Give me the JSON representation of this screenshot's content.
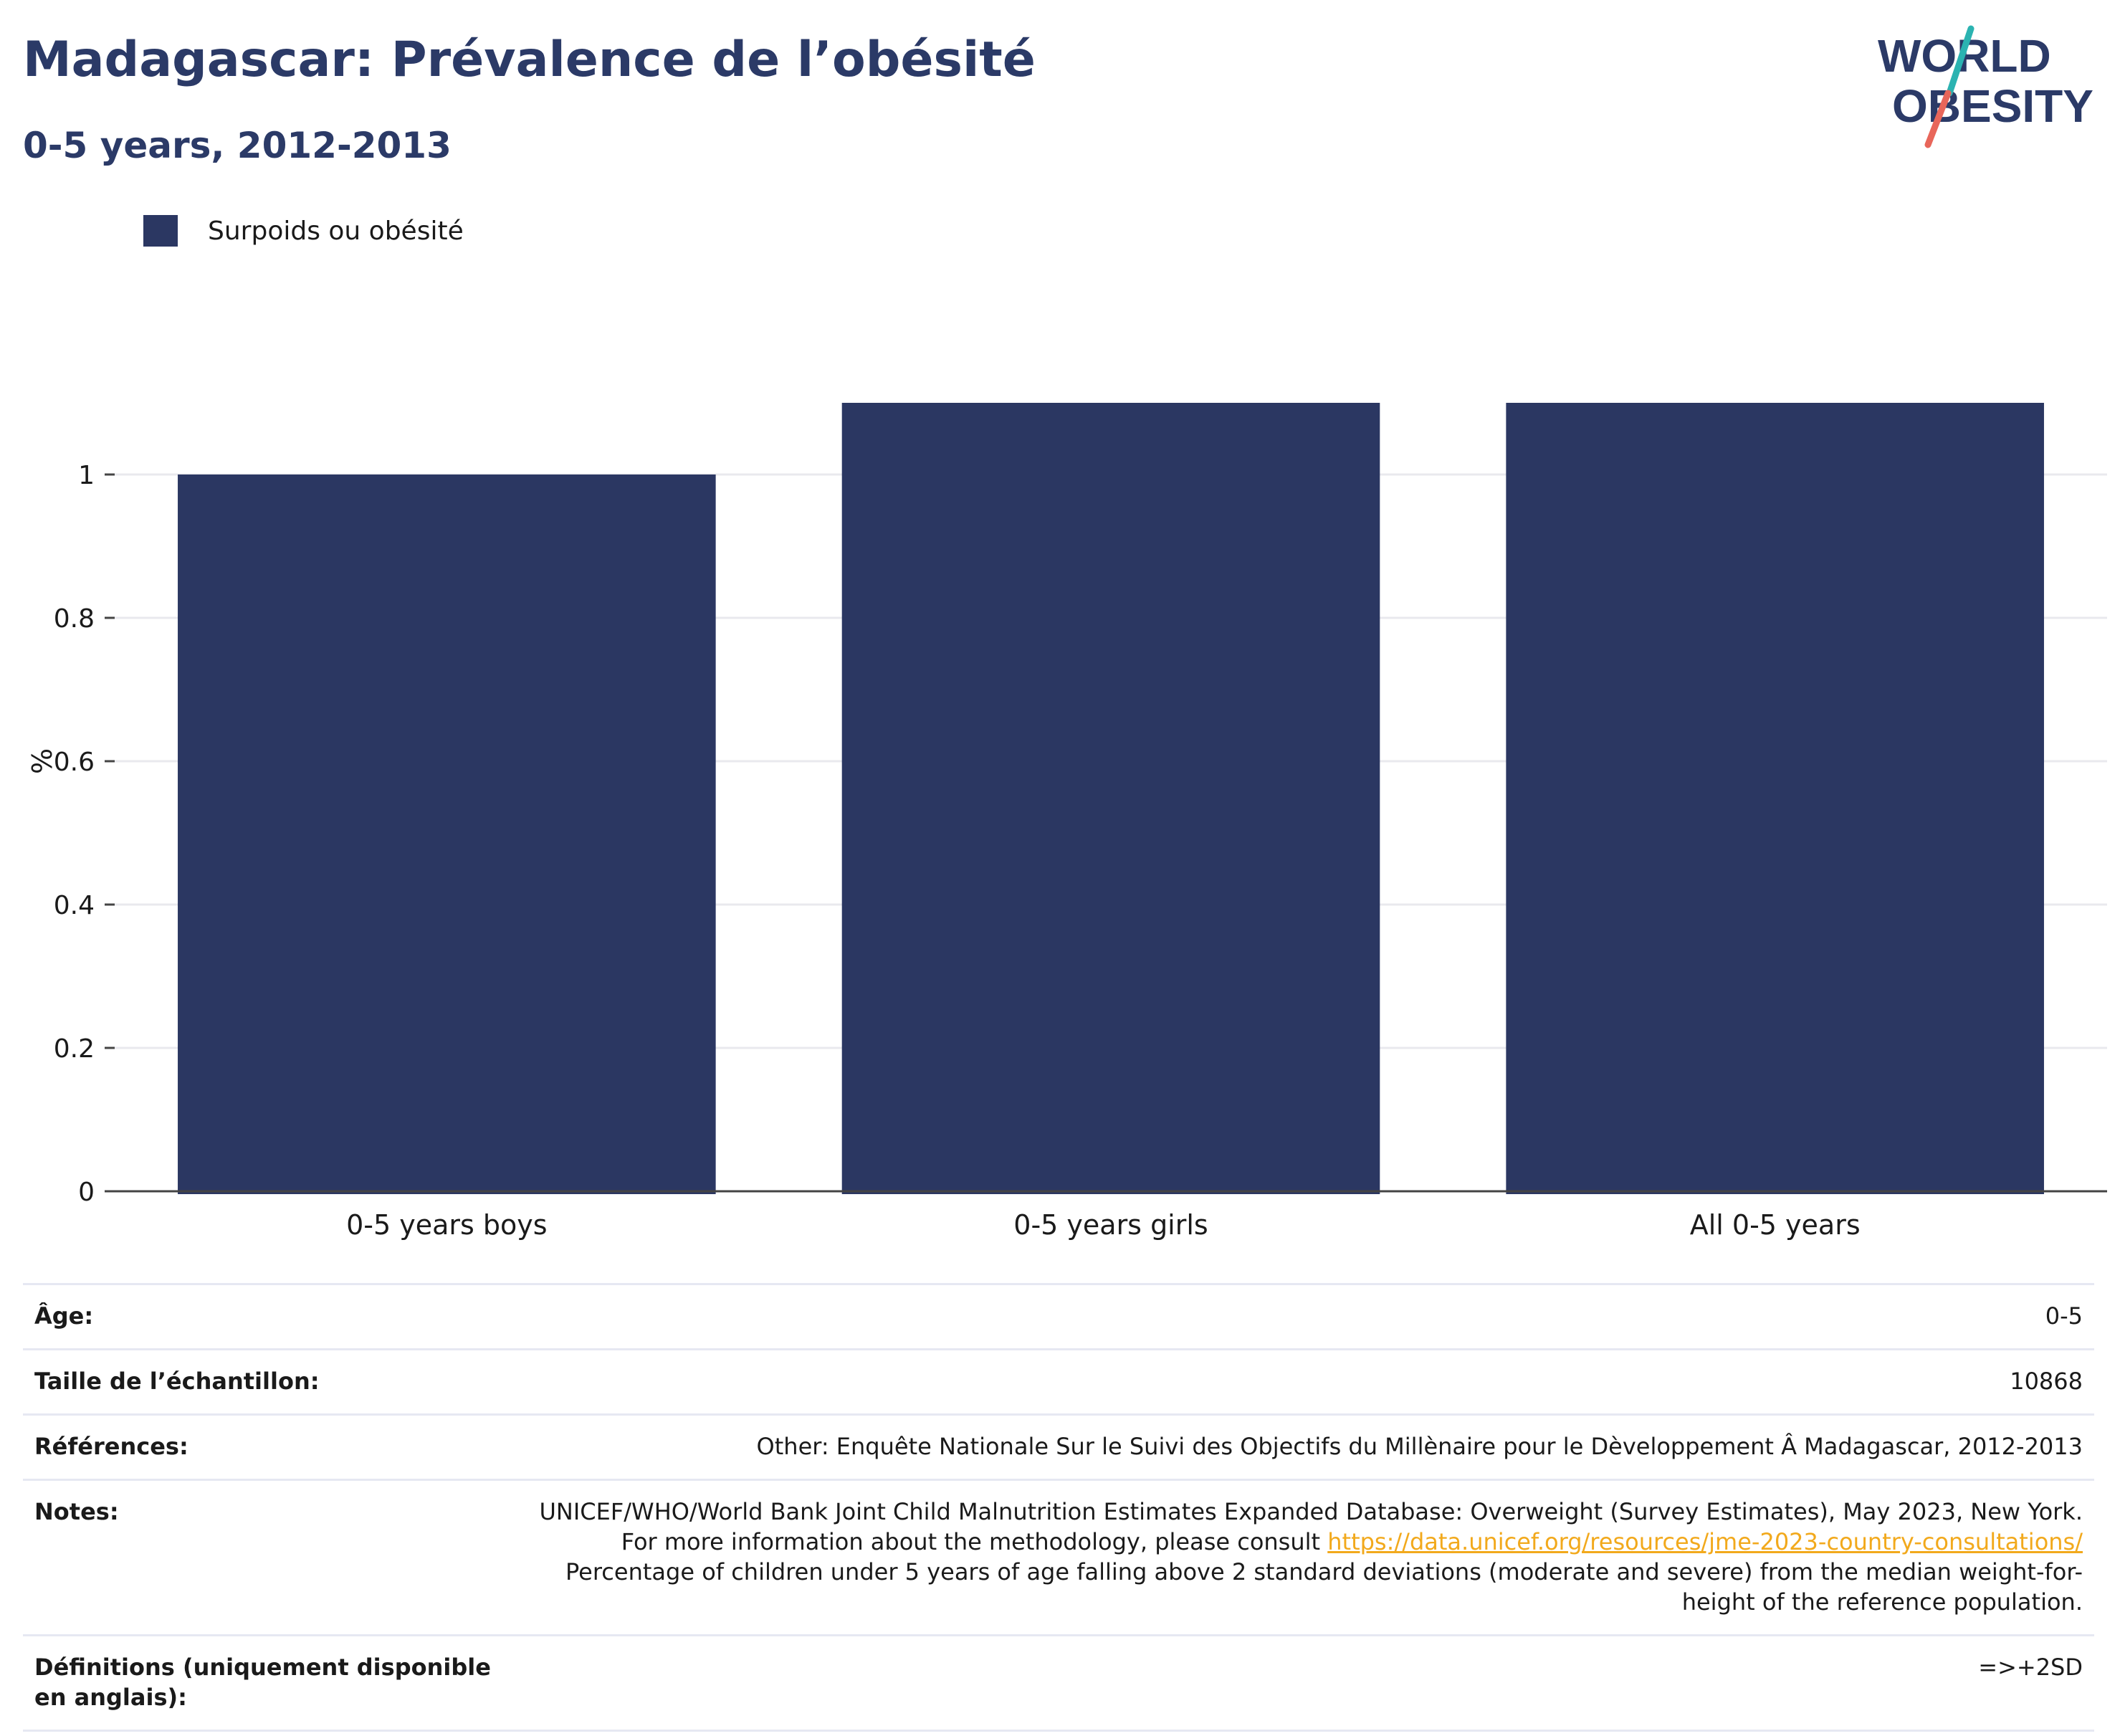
{
  "header": {
    "title": "Madagascar: Prévalence de l’obésité",
    "subtitle": "0-5 years, 2012-2013"
  },
  "logo": {
    "line1": "WORLD",
    "line2": "OBESITY",
    "colors": {
      "text": "#2b3a67",
      "slash_top": "#2bb3b1",
      "slash_bottom": "#e8665a"
    }
  },
  "legend": {
    "label": "Surpoids ou obésité",
    "color": "#2b3762"
  },
  "chart_data": {
    "type": "bar",
    "categories": [
      "0-5 years boys",
      "0-5 years girls",
      "All 0-5 years"
    ],
    "series": [
      {
        "name": "Surpoids ou obésité",
        "values": [
          1.0,
          1.1,
          1.1
        ],
        "color": "#2b3762"
      }
    ],
    "ylabel": "%",
    "ylim": [
      0,
      1.1
    ],
    "yticks": [
      0,
      0.2,
      0.4,
      0.6,
      0.8,
      1
    ],
    "yticklabels": [
      "0",
      "0.2",
      "0.4",
      "0.6",
      "0.8",
      "1"
    ],
    "grid": true
  },
  "meta": {
    "age_label": "Âge:",
    "age_value": "0-5",
    "sample_label": "Taille de l’échantillon:",
    "sample_value": "10868",
    "refs_label": "Références:",
    "refs_value": "Other: Enquête Nationale Sur le Suivi des Objectifs du Millènaire pour le Dèveloppement Â Madagascar, 2012-2013",
    "notes_label": "Notes:",
    "notes_text1": "UNICEF/WHO/World Bank Joint Child Malnutrition Estimates Expanded Database: Overweight (Survey Estimates), May 2023, New York. For more information about the methodology, please consult ",
    "notes_link": "https://data.unicef.org/resources/jme-2023-country-consultations/",
    "notes_text2": " Percentage of children under 5 years of age falling above 2 standard deviations (moderate and severe) from the median weight-for-height of the reference population.",
    "defs_label": "Définitions (uniquement disponible en anglais):",
    "defs_value": "=>+2SD"
  }
}
